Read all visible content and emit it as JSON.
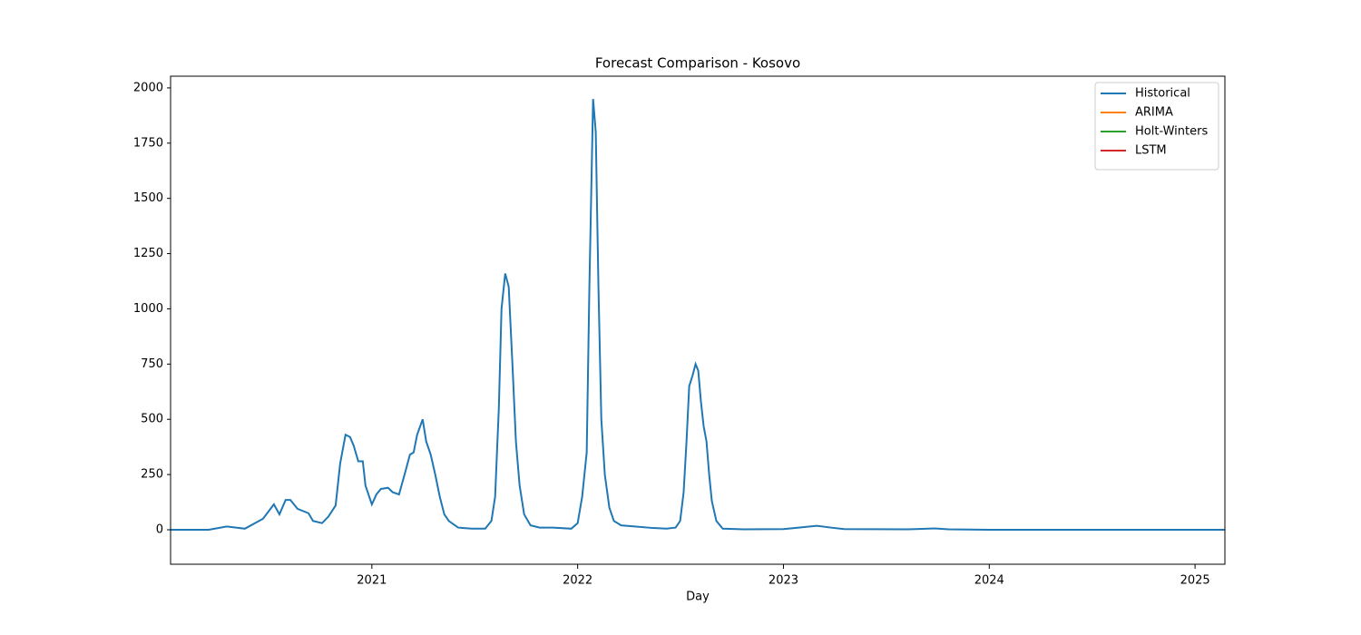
{
  "chart_data": {
    "type": "line",
    "title": "Forecast Comparison - Kosovo",
    "xlabel": "Day",
    "xlim": [
      2020.022,
      2025.145
    ],
    "xticks": [
      2021,
      2022,
      2023,
      2024,
      2025
    ],
    "ylim": [
      -156,
      2053
    ],
    "yticks": [
      0,
      250,
      500,
      750,
      1000,
      1250,
      1500,
      1750,
      2000
    ],
    "legend": "upper right",
    "series": [
      {
        "name": "Historical",
        "color": "#1f77b4",
        "x": [
          2020.022,
          2020.207,
          2020.295,
          2020.383,
          2020.471,
          2020.524,
          2020.551,
          2020.581,
          2020.604,
          2020.639,
          2020.692,
          2020.714,
          2020.758,
          2020.789,
          2020.824,
          2020.846,
          2020.872,
          2020.894,
          2020.912,
          2020.934,
          2020.956,
          2020.969,
          2021.0,
          2021.022,
          2021.044,
          2021.079,
          2021.101,
          2021.132,
          2021.159,
          2021.185,
          2021.203,
          2021.22,
          2021.247,
          2021.264,
          2021.286,
          2021.308,
          2021.33,
          2021.352,
          2021.374,
          2021.419,
          2021.485,
          2021.551,
          2021.581,
          2021.599,
          2021.617,
          2021.63,
          2021.648,
          2021.665,
          2021.683,
          2021.7,
          2021.718,
          2021.74,
          2021.771,
          2021.815,
          2021.881,
          2021.969,
          2022.0,
          2022.022,
          2022.044,
          2022.057,
          2022.075,
          2022.088,
          2022.101,
          2022.115,
          2022.132,
          2022.154,
          2022.176,
          2022.211,
          2022.278,
          2022.366,
          2022.432,
          2022.476,
          2022.498,
          2022.515,
          2022.529,
          2022.542,
          2022.559,
          2022.573,
          2022.586,
          2022.599,
          2022.612,
          2022.626,
          2022.639,
          2022.652,
          2022.674,
          2022.705,
          2022.806,
          2023.0,
          2023.075,
          2023.163,
          2023.229,
          2023.295,
          2023.604,
          2023.736,
          2023.802,
          2024.0,
          2025.145
        ],
        "values": [
          0,
          0,
          15,
          5,
          50,
          115,
          70,
          135,
          135,
          95,
          75,
          40,
          30,
          60,
          110,
          300,
          430,
          420,
          380,
          310,
          310,
          200,
          115,
          160,
          185,
          190,
          170,
          160,
          250,
          340,
          350,
          430,
          500,
          400,
          340,
          250,
          150,
          70,
          40,
          10,
          5,
          5,
          40,
          150,
          550,
          1000,
          1160,
          1100,
          750,
          400,
          200,
          70,
          20,
          10,
          10,
          5,
          30,
          150,
          350,
          1100,
          1950,
          1800,
          1100,
          500,
          250,
          100,
          40,
          20,
          15,
          8,
          5,
          10,
          40,
          170,
          400,
          650,
          700,
          750,
          720,
          580,
          470,
          400,
          250,
          130,
          40,
          5,
          2,
          3,
          10,
          18,
          10,
          3,
          2,
          6,
          2,
          0,
          0
        ]
      },
      {
        "name": "ARIMA",
        "color": "#ff7f0e",
        "x": [],
        "values": []
      },
      {
        "name": "Holt-Winters",
        "color": "#2ca02c",
        "x": [],
        "values": []
      },
      {
        "name": "LSTM",
        "color": "#d62728",
        "x": [],
        "values": []
      }
    ]
  }
}
